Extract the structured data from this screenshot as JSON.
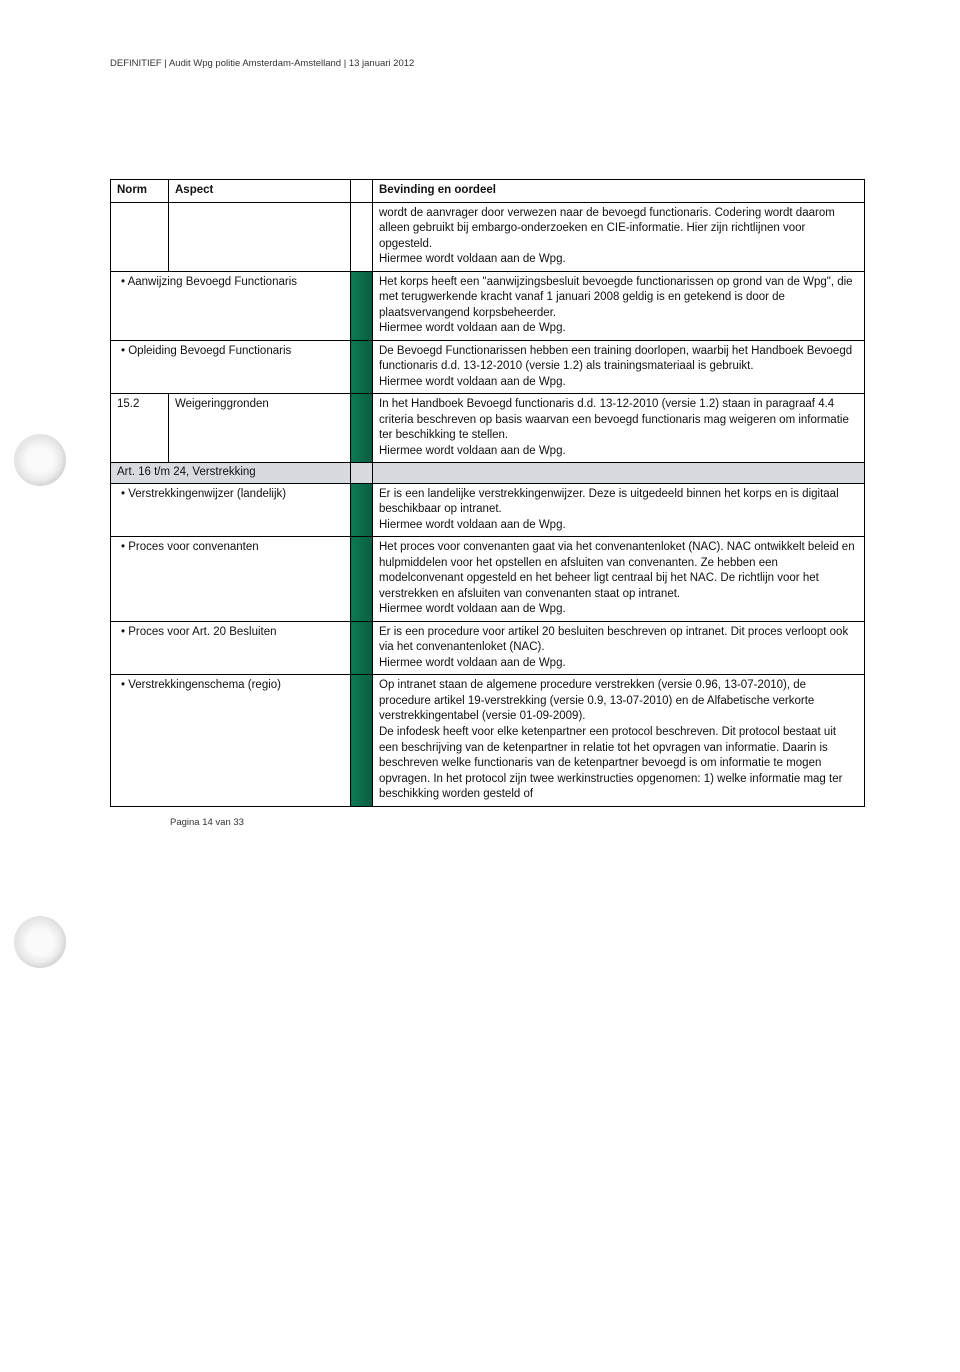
{
  "header": "DEFINITIEF | Audit Wpg politie Amsterdam-Amstelland | 13 januari 2012",
  "footer": "Pagina 14 van 33",
  "table": {
    "headers": {
      "norm": "Norm",
      "aspect": "Aspect",
      "finding": "Bevinding en oordeel"
    },
    "rows": [
      {
        "norm": "",
        "aspect": "",
        "aspect_bullet": false,
        "status": "none",
        "finding": "wordt de aanvrager door verwezen naar de bevoegd functionaris. Codering wordt daarom alleen gebruikt bij embargo-onderzoeken en CIE-informatie. Hier zijn richtlijnen voor opgesteld.\nHiermee wordt voldaan aan de Wpg."
      },
      {
        "norm": "",
        "aspect": "Aanwijzing Bevoegd Functionaris",
        "aspect_bullet": true,
        "status": "green",
        "finding": "Het korps heeft een \"aanwijzingsbesluit bevoegde functionarissen op grond van de Wpg\", die met terugwerkende kracht vanaf 1 januari 2008 geldig is en getekend is door de plaatsvervangend korpsbeheerder.\nHiermee wordt voldaan aan de Wpg."
      },
      {
        "norm": "",
        "aspect": "Opleiding Bevoegd Functionaris",
        "aspect_bullet": true,
        "status": "green",
        "finding": "De Bevoegd Functionarissen hebben een training doorlopen, waarbij het Handboek Bevoegd functionaris d.d. 13-12-2010 (versie 1.2) als trainingsmateriaal is gebruikt.\nHiermee wordt voldaan aan de Wpg."
      },
      {
        "norm": "15.2",
        "aspect": "Weigeringgronden",
        "aspect_bullet": false,
        "status": "green",
        "finding": "In het Handboek Bevoegd functionaris d.d. 13-12-2010 (versie 1.2) staan in paragraaf 4.4 criteria beschreven op basis waarvan een bevoegd functionaris mag weigeren om informatie ter beschikking te stellen.\nHiermee wordt voldaan aan de Wpg."
      },
      {
        "section": true,
        "label": "Art. 16 t/m 24, Verstrekking"
      },
      {
        "norm": "",
        "aspect": "Verstrekkingenwijzer (landelijk)",
        "aspect_bullet": true,
        "status": "green",
        "finding": "Er is een landelijke verstrekkingenwijzer. Deze is uitgedeeld binnen het korps en is digitaal beschikbaar op intranet.\nHiermee wordt voldaan aan de Wpg."
      },
      {
        "norm": "",
        "aspect": "Proces voor convenanten",
        "aspect_bullet": true,
        "status": "green",
        "finding": "Het proces voor convenanten gaat via het convenantenloket (NAC). NAC ontwikkelt beleid en hulpmiddelen voor het opstellen en afsluiten van convenanten. Ze hebben een modelconvenant opgesteld en het beheer ligt centraal bij het NAC. De richtlijn voor het verstrekken en afsluiten van convenanten staat op intranet.\nHiermee wordt voldaan aan de Wpg."
      },
      {
        "norm": "",
        "aspect": "Proces voor Art. 20 Besluiten",
        "aspect_bullet": true,
        "status": "green",
        "finding": "Er is een procedure voor artikel 20 besluiten beschreven op intranet. Dit proces verloopt ook via het convenantenloket (NAC).\nHiermee wordt voldaan aan de Wpg."
      },
      {
        "norm": "",
        "aspect": "Verstrekkingenschema (regio)",
        "aspect_bullet": true,
        "status": "green",
        "finding": "Op intranet staan de algemene procedure verstrekken (versie 0.96, 13-07-2010), de procedure artikel 19-verstrekking (versie 0.9, 13-07-2010) en de Alfabetische verkorte verstrekkingentabel (versie 01-09-2009).\nDe infodesk heeft voor elke ketenpartner een protocol beschreven. Dit protocol bestaat uit een beschrijving van de ketenpartner in relatie tot het opvragen van informatie. Daarin is beschreven welke functionaris van de ketenpartner bevoegd is om informatie te mogen opvragen. In het protocol zijn twee werkinstructies opgenomen: 1) welke informatie mag ter beschikking worden gesteld of"
      }
    ]
  }
}
